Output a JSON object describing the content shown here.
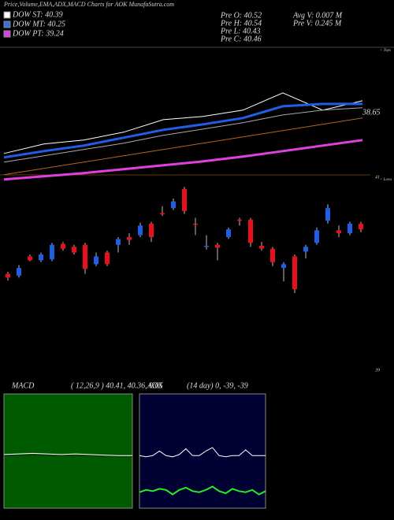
{
  "header": {
    "title": "Price,Volume,EMA,ADX,MACD Charts for AOK MunafaSutra.com",
    "info": [
      "Pre   O: 40.52",
      "Pre   H: 40.54",
      "Pre   L: 40.43",
      "Pre   C: 40.46",
      "Avg V: 0.007 M",
      "Pre   V: 0.245 M"
    ],
    "tops": "< Tops",
    "lows": "< Lows"
  },
  "chart_data": [
    {
      "type": "line",
      "ylim": [
        28.5,
        48.3
      ],
      "annotation": "38.65",
      "x": [
        0,
        1,
        2,
        3,
        4,
        5,
        6,
        7,
        8,
        9
      ],
      "legend": [
        {
          "name": "DOW ST: 40.39",
          "color": "#ffffff"
        },
        {
          "name": "DOW MT: 40.25",
          "color": "#3a6fe0"
        },
        {
          "name": "DOW PT: 39.24",
          "color": "#e040e0"
        }
      ],
      "series": [
        {
          "color": "#ffffff",
          "width": 1,
          "values": [
            32.6,
            34.0,
            34.58,
            35.74,
            37.6,
            38.07,
            39.0,
            41.56,
            39.0,
            40.39
          ]
        },
        {
          "color": "#1f5fe8",
          "width": 3,
          "values": [
            32.02,
            32.95,
            33.77,
            34.93,
            36.09,
            36.91,
            37.84,
            39.58,
            39.93,
            39.93
          ]
        },
        {
          "color": "#aaaaaa",
          "width": 1,
          "values": [
            31.32,
            32.25,
            33.18,
            34.12,
            35.28,
            36.21,
            37.14,
            38.3,
            39.0,
            39.35
          ]
        },
        {
          "color": "#b5651d",
          "width": 1,
          "values": [
            29.46,
            30.39,
            31.32,
            32.25,
            33.18,
            34.12,
            35.05,
            35.98,
            36.91,
            37.84
          ]
        },
        {
          "color": "#e040e0",
          "width": 3,
          "values": [
            28.77,
            29.23,
            29.7,
            30.28,
            30.86,
            31.44,
            32.14,
            32.95,
            33.77,
            34.58
          ]
        }
      ]
    },
    {
      "type": "candlestick",
      "ylim": [
        39,
        41
      ],
      "yticks": [
        39,
        41
      ],
      "up_color": "#1f5fe8",
      "down_color": "#e8101a",
      "open": [
        40.0,
        39.98,
        40.18,
        40.14,
        40.15,
        40.31,
        40.28,
        40.3,
        40.1,
        40.22,
        40.3,
        40.38,
        40.4,
        40.52,
        40.63,
        40.68,
        40.88,
        40.52,
        40.28,
        40.3,
        40.38,
        40.56,
        40.56,
        40.29,
        40.26,
        40.06,
        40.18,
        40.23,
        40.32,
        40.55,
        40.45,
        40.42,
        40.52
      ],
      "high": [
        40.02,
        40.09,
        40.2,
        40.22,
        40.32,
        40.33,
        40.3,
        40.32,
        40.22,
        40.24,
        40.38,
        40.42,
        40.53,
        40.54,
        40.7,
        40.78,
        40.9,
        40.58,
        40.4,
        40.32,
        40.48,
        40.58,
        40.58,
        40.33,
        40.28,
        40.12,
        40.2,
        40.3,
        40.48,
        40.72,
        40.5,
        40.54,
        40.54
      ],
      "low": [
        39.93,
        39.96,
        40.13,
        40.12,
        40.13,
        40.24,
        40.2,
        40.0,
        40.08,
        40.08,
        40.22,
        40.3,
        40.38,
        40.33,
        40.6,
        40.66,
        40.62,
        40.4,
        40.25,
        40.14,
        40.36,
        40.5,
        40.28,
        40.24,
        40.08,
        39.92,
        39.8,
        40.16,
        40.3,
        40.52,
        40.38,
        40.4,
        40.43
      ],
      "close": [
        39.96,
        40.06,
        40.14,
        40.2,
        40.3,
        40.26,
        40.22,
        40.05,
        40.18,
        40.1,
        40.36,
        40.35,
        40.5,
        40.38,
        40.62,
        40.75,
        40.65,
        40.51,
        40.29,
        40.27,
        40.46,
        40.55,
        40.32,
        40.26,
        40.12,
        40.1,
        39.84,
        40.28,
        40.45,
        40.68,
        40.42,
        40.52,
        40.46
      ]
    },
    {
      "type": "line",
      "title": "MACD",
      "subtitle": "( 12,26,9 ) 40.41, 40.36, 0.05",
      "ylim": [
        -1,
        1
      ],
      "background": "#005a00",
      "x": [
        0,
        1,
        2,
        3,
        4,
        5,
        6,
        7,
        8,
        9
      ],
      "series": [
        {
          "color": "#ffffff",
          "width": 1,
          "values": [
            -0.06,
            -0.05,
            -0.04,
            -0.05,
            -0.06,
            -0.05,
            -0.06,
            -0.07,
            -0.08,
            -0.08
          ]
        },
        {
          "color": "#222222",
          "width": 1,
          "values": [
            -0.08,
            -0.08,
            -0.07,
            -0.07,
            -0.08,
            -0.08,
            -0.08,
            -0.09,
            -0.1,
            -0.1
          ]
        }
      ]
    },
    {
      "type": "line",
      "title": "ADX",
      "subtitle": "(14 day) 0, -39, -39",
      "ylim": [
        0,
        100
      ],
      "background": "#000033",
      "x": [
        0,
        1,
        2,
        3,
        4,
        5,
        6,
        7,
        8,
        9,
        10,
        11,
        12,
        13,
        14,
        15,
        16,
        17,
        18,
        19
      ],
      "series": [
        {
          "color": "#ffffff",
          "width": 1,
          "values": [
            46,
            45,
            46,
            50,
            46,
            45,
            47,
            52,
            46,
            46,
            50,
            53,
            46,
            45,
            46,
            46,
            51,
            46,
            46,
            46
          ]
        },
        {
          "color": "#22ee22",
          "width": 2,
          "values": [
            14,
            16,
            15,
            17,
            16,
            12,
            16,
            18,
            15,
            14,
            16,
            19,
            15,
            13,
            17,
            15,
            14,
            16,
            12,
            15
          ]
        }
      ]
    }
  ]
}
